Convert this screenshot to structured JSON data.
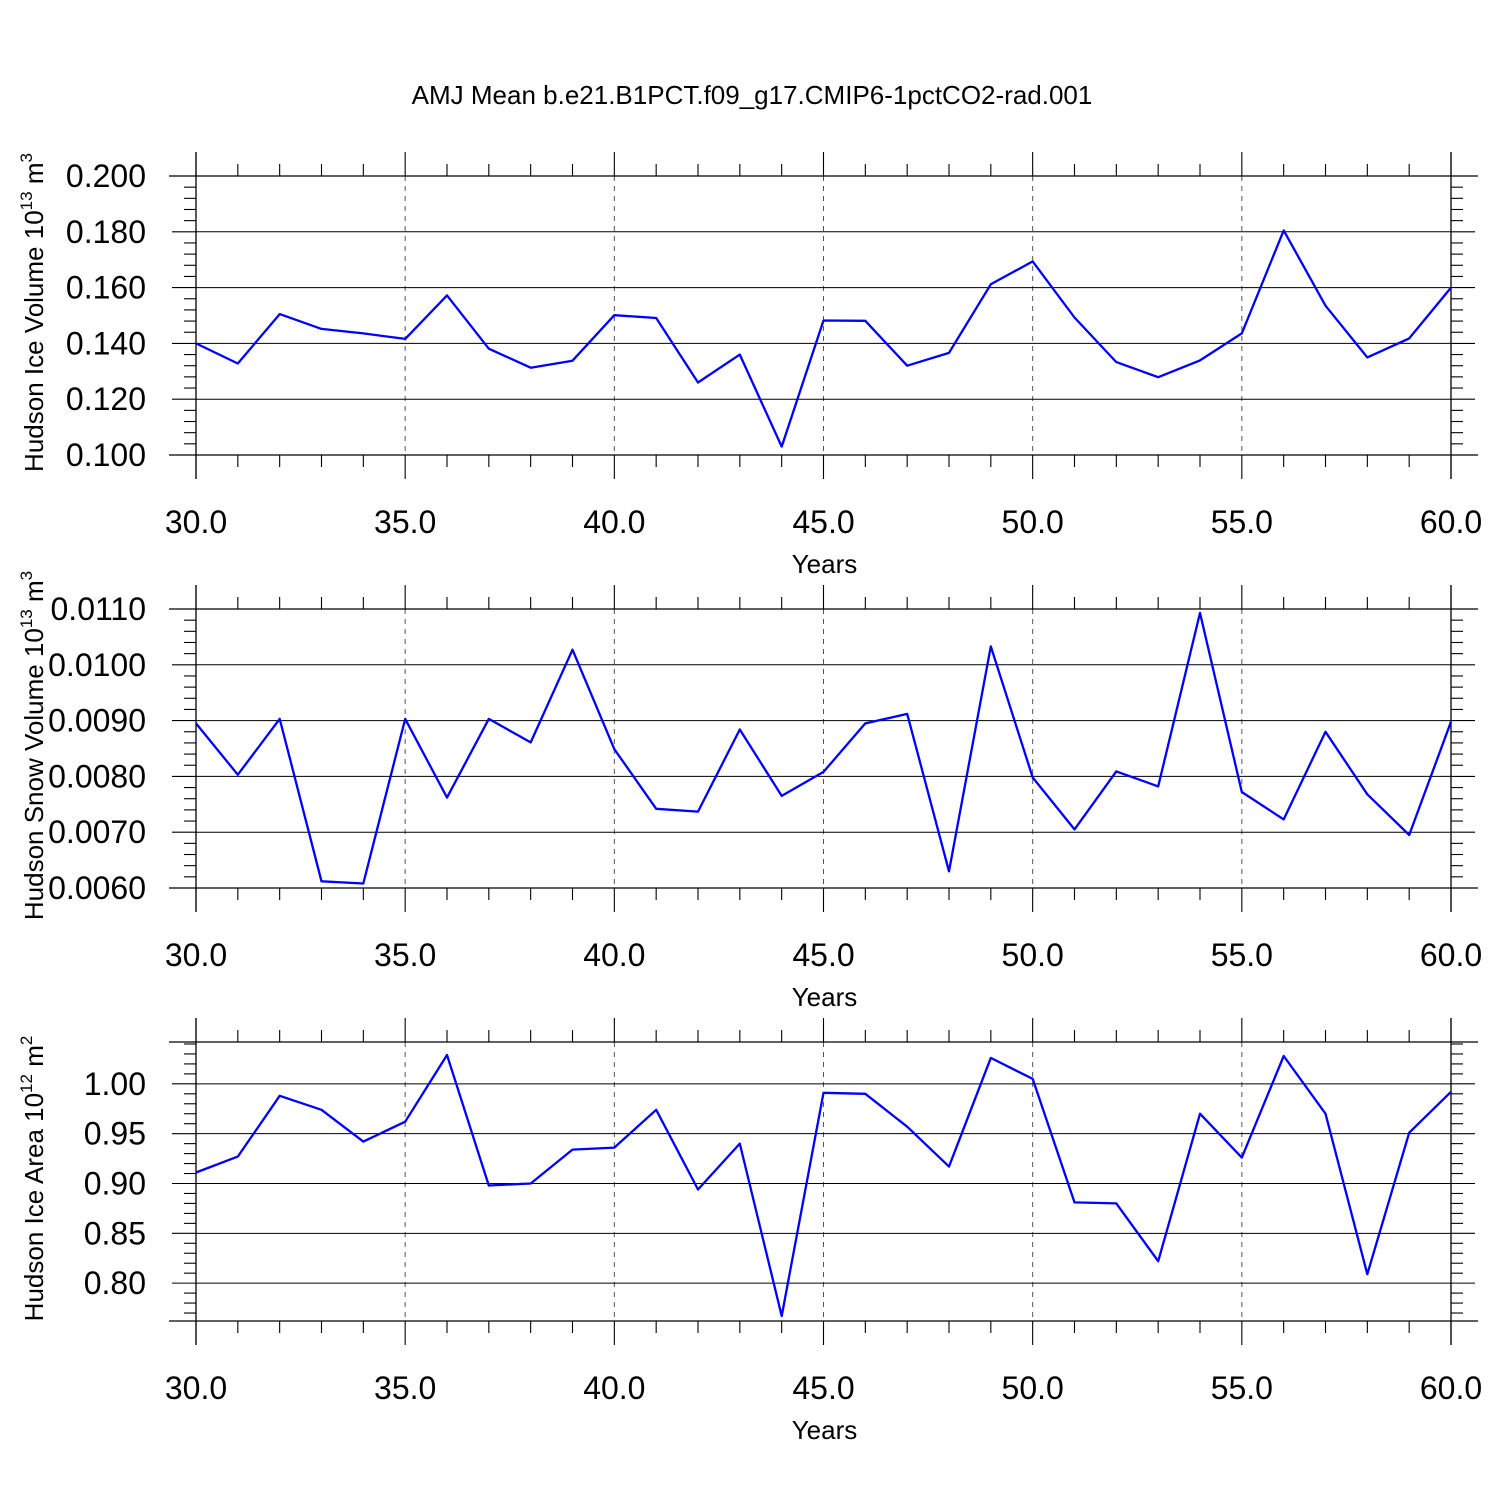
{
  "figure_title": "AMJ Mean b.e21.B1PCT.f09_g17.CMIP6-1pctCO2-rad.001",
  "colors": {
    "line": "#0000ff",
    "axis": "#000000",
    "grid": "#555555"
  },
  "chart_data": [
    {
      "type": "line",
      "xlabel": "Years",
      "ylabel": {
        "text": "Hudson Ice Volume 10",
        "sup": "13",
        "unit": " m",
        "unit_sup": "3"
      },
      "xlim": [
        30,
        60
      ],
      "ylim": [
        0.1,
        0.2
      ],
      "xticks": [
        30,
        35,
        40,
        45,
        50,
        55,
        60
      ],
      "xtick_labels": [
        "30.0",
        "35.0",
        "40.0",
        "45.0",
        "50.0",
        "55.0",
        "60.0"
      ],
      "yticks": [
        0.1,
        0.12,
        0.14,
        0.16,
        0.18,
        0.2
      ],
      "ytick_labels": [
        "0.100",
        "0.120",
        "0.140",
        "0.160",
        "0.180",
        "0.200"
      ],
      "grid": "vertical dashed at major x ticks",
      "x": [
        30,
        31,
        32,
        33,
        34,
        35,
        36,
        37,
        38,
        39,
        40,
        41,
        42,
        43,
        44,
        45,
        46,
        47,
        48,
        49,
        50,
        51,
        52,
        53,
        54,
        55,
        56,
        57,
        58,
        59,
        60
      ],
      "values": [
        0.14,
        0.1328,
        0.1505,
        0.1452,
        0.1436,
        0.1416,
        0.1572,
        0.1381,
        0.1313,
        0.1338,
        0.1501,
        0.1491,
        0.126,
        0.136,
        0.103,
        0.1482,
        0.1481,
        0.132,
        0.1366,
        0.1612,
        0.1694,
        0.1493,
        0.1333,
        0.1279,
        0.1339,
        0.1436,
        0.1805,
        0.1535,
        0.135,
        0.1418,
        0.16
      ]
    },
    {
      "type": "line",
      "xlabel": "Years",
      "ylabel": {
        "text": "Hudson Snow Volume 10",
        "sup": "13",
        "unit": " m",
        "unit_sup": "3"
      },
      "xlim": [
        30,
        60
      ],
      "ylim": [
        0.006,
        0.011
      ],
      "xticks": [
        30,
        35,
        40,
        45,
        50,
        55,
        60
      ],
      "xtick_labels": [
        "30.0",
        "35.0",
        "40.0",
        "45.0",
        "50.0",
        "55.0",
        "60.0"
      ],
      "yticks": [
        0.006,
        0.007,
        0.008,
        0.009,
        0.01,
        0.011
      ],
      "ytick_labels": [
        "0.0060",
        "0.0070",
        "0.0080",
        "0.0090",
        "0.0100",
        "0.0110"
      ],
      "grid": "vertical dashed at major x ticks",
      "x": [
        30,
        31,
        32,
        33,
        34,
        35,
        36,
        37,
        38,
        39,
        40,
        41,
        42,
        43,
        44,
        45,
        46,
        47,
        48,
        49,
        50,
        51,
        52,
        53,
        54,
        55,
        56,
        57,
        58,
        59,
        60
      ],
      "values": [
        0.00895,
        0.00803,
        0.00903,
        0.00612,
        0.00608,
        0.00903,
        0.00762,
        0.00903,
        0.00861,
        0.01027,
        0.00849,
        0.00742,
        0.00737,
        0.00884,
        0.00765,
        0.00808,
        0.00895,
        0.00912,
        0.0063,
        0.01033,
        0.00798,
        0.00705,
        0.00809,
        0.00782,
        0.01093,
        0.00772,
        0.00723,
        0.0088,
        0.00768,
        0.00695,
        0.00898
      ]
    },
    {
      "type": "line",
      "xlabel": "Years",
      "ylabel": {
        "text": "Hudson Ice Area 10",
        "sup": "12",
        "unit": " m",
        "unit_sup": "2"
      },
      "xlim": [
        30,
        60
      ],
      "ylim": [
        0.762,
        1.042
      ],
      "xticks": [
        30,
        35,
        40,
        45,
        50,
        55,
        60
      ],
      "xtick_labels": [
        "30.0",
        "35.0",
        "40.0",
        "45.0",
        "50.0",
        "55.0",
        "60.0"
      ],
      "yticks": [
        0.8,
        0.85,
        0.9,
        0.95,
        1.0
      ],
      "ytick_labels": [
        "0.80",
        "0.85",
        "0.90",
        "0.95",
        "1.00"
      ],
      "grid": "vertical dashed at major x ticks",
      "x": [
        30,
        31,
        32,
        33,
        34,
        35,
        36,
        37,
        38,
        39,
        40,
        41,
        42,
        43,
        44,
        45,
        46,
        47,
        48,
        49,
        50,
        51,
        52,
        53,
        54,
        55,
        56,
        57,
        58,
        59,
        60
      ],
      "values": [
        0.911,
        0.927,
        0.988,
        0.974,
        0.942,
        0.962,
        1.029,
        0.898,
        0.9,
        0.934,
        0.936,
        0.974,
        0.894,
        0.94,
        0.767,
        0.991,
        0.99,
        0.957,
        0.917,
        1.026,
        1.005,
        0.881,
        0.88,
        0.822,
        0.97,
        0.926,
        1.028,
        0.97,
        0.809,
        0.951,
        0.992
      ]
    }
  ]
}
